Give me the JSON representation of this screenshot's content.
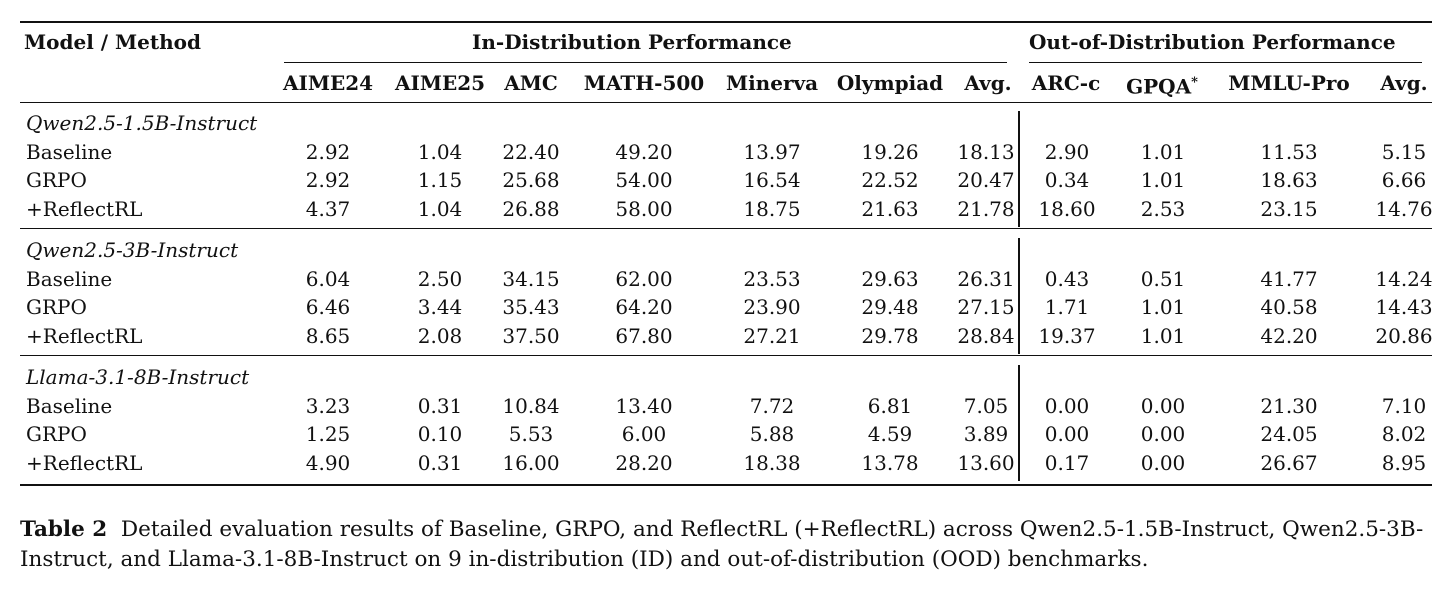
{
  "table": {
    "header_model": "Model / Method",
    "group_id": "In-Distribution Performance",
    "group_ood": "Out-of-Distribution Performance",
    "columns": [
      "AIME24",
      "AIME25",
      "AMC",
      "MATH-500",
      "Minerva",
      "Olympiad",
      "Avg.",
      "ARC-c",
      "GPQA*",
      "MMLU-Pro",
      "Avg."
    ],
    "sections": [
      {
        "model": "Qwen2.5-1.5B-Instruct",
        "rows": [
          {
            "method": "Baseline",
            "values": [
              "2.92",
              "1.04",
              "22.40",
              "49.20",
              "13.97",
              "19.26",
              "18.13",
              "2.90",
              "1.01",
              "11.53",
              "5.15"
            ]
          },
          {
            "method": "GRPO",
            "values": [
              "2.92",
              "1.15",
              "25.68",
              "54.00",
              "16.54",
              "22.52",
              "20.47",
              "0.34",
              "1.01",
              "18.63",
              "6.66"
            ]
          },
          {
            "method": "+ReflectRL",
            "values": [
              "4.37",
              "1.04",
              "26.88",
              "58.00",
              "18.75",
              "21.63",
              "21.78",
              "18.60",
              "2.53",
              "23.15",
              "14.76"
            ]
          }
        ]
      },
      {
        "model": "Qwen2.5-3B-Instruct",
        "rows": [
          {
            "method": "Baseline",
            "values": [
              "6.04",
              "2.50",
              "34.15",
              "62.00",
              "23.53",
              "29.63",
              "26.31",
              "0.43",
              "0.51",
              "41.77",
              "14.24"
            ]
          },
          {
            "method": "GRPO",
            "values": [
              "6.46",
              "3.44",
              "35.43",
              "64.20",
              "23.90",
              "29.48",
              "27.15",
              "1.71",
              "1.01",
              "40.58",
              "14.43"
            ]
          },
          {
            "method": "+ReflectRL",
            "values": [
              "8.65",
              "2.08",
              "37.50",
              "67.80",
              "27.21",
              "29.78",
              "28.84",
              "19.37",
              "1.01",
              "42.20",
              "20.86"
            ]
          }
        ]
      },
      {
        "model": "Llama-3.1-8B-Instruct",
        "rows": [
          {
            "method": "Baseline",
            "values": [
              "3.23",
              "0.31",
              "10.84",
              "13.40",
              "7.72",
              "6.81",
              "7.05",
              "0.00",
              "0.00",
              "21.30",
              "7.10"
            ]
          },
          {
            "method": "GRPO",
            "values": [
              "1.25",
              "0.10",
              "5.53",
              "6.00",
              "5.88",
              "4.59",
              "3.89",
              "0.00",
              "0.00",
              "24.05",
              "8.02"
            ]
          },
          {
            "method": "+ReflectRL",
            "values": [
              "4.90",
              "0.31",
              "16.00",
              "28.20",
              "18.38",
              "13.78",
              "13.60",
              "0.17",
              "0.00",
              "26.67",
              "8.95"
            ]
          }
        ]
      }
    ]
  },
  "caption": {
    "label": "Table 2",
    "text": "Detailed evaluation results of Baseline, GRPO, and ReflectRL (+ReflectRL) across Qwen2.5-1.5B-Instruct, Qwen2.5-3B-Instruct, and Llama-3.1-8B-Instruct on 9 in-distribution (ID) and out-of-distribution (OOD) benchmarks."
  }
}
